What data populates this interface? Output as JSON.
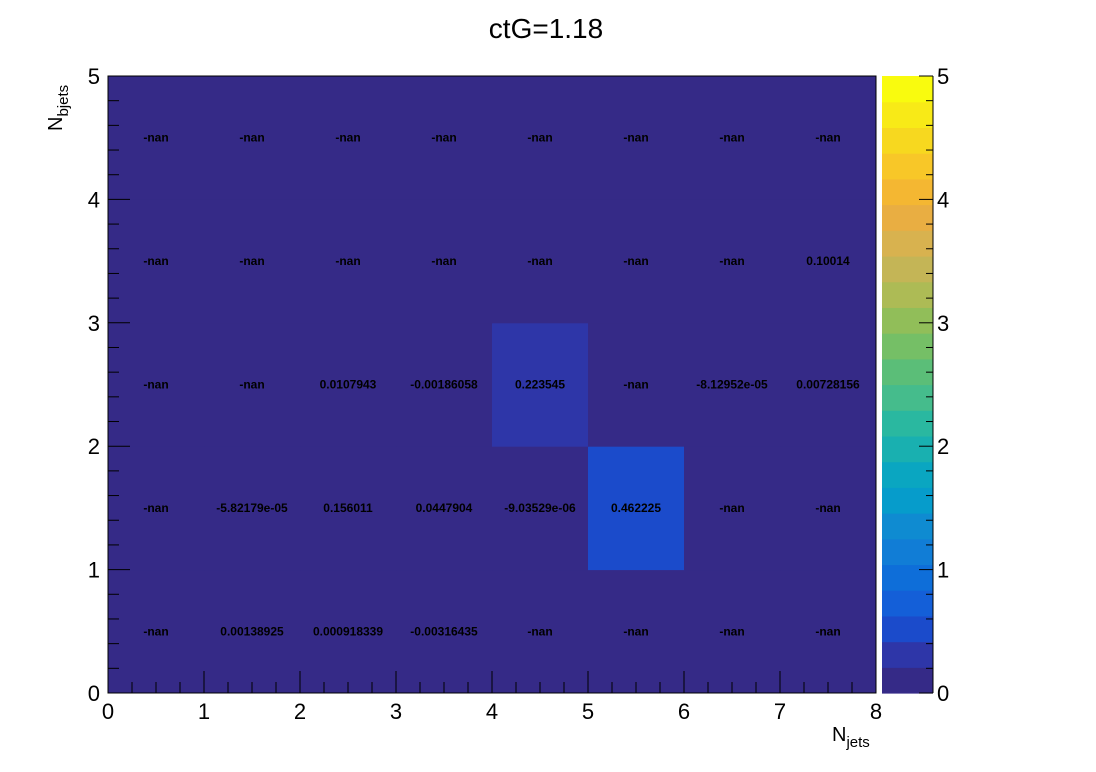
{
  "chart_data": {
    "type": "heatmap",
    "title": "ctG=1.18",
    "xlabel": {
      "main": "N",
      "sub": "jets"
    },
    "ylabel": {
      "main": "N",
      "sub": "bjets"
    },
    "xlim": [
      0,
      8
    ],
    "ylim": [
      0,
      5
    ],
    "x_ticks": [
      "0",
      "1",
      "2",
      "3",
      "4",
      "5",
      "6",
      "7",
      "8"
    ],
    "y_ticks": [
      "0",
      "1",
      "2",
      "3",
      "4",
      "5"
    ],
    "z_range": [
      0,
      5
    ],
    "z_ticks": [
      "0",
      "1",
      "2",
      "3",
      "4",
      "5"
    ],
    "palette": [
      "#352a87",
      "#2e36a8",
      "#1b4bcb",
      "#145fd8",
      "#0e6ed9",
      "#117dd6",
      "#0f8bd1",
      "#069ccb",
      "#0aa6c1",
      "#19b0b0",
      "#2ab8a0",
      "#45bc8c",
      "#5bbe78",
      "#75bf66",
      "#91be59",
      "#adbb55",
      "#c4b556",
      "#d8b24f",
      "#e9ae42",
      "#f4b732",
      "#f8c728",
      "#f7d81f",
      "#f8ea17",
      "#f9fb0e"
    ],
    "rows": [
      {
        "nbjets": 0,
        "labels": [
          "-nan",
          "0.00138925",
          "0.000918339",
          "-0.00316435",
          "-nan",
          "-nan",
          "-nan",
          "-nan"
        ],
        "values": [
          null,
          0.00138925,
          0.000918339,
          -0.00316435,
          null,
          null,
          null,
          null
        ]
      },
      {
        "nbjets": 1,
        "labels": [
          "-nan",
          "-5.82179e-05",
          "0.156011",
          "0.0447904",
          "-9.03529e-06",
          "0.462225",
          "-nan",
          "-nan"
        ],
        "values": [
          null,
          -5.82179e-05,
          0.156011,
          0.0447904,
          -9.03529e-06,
          0.462225,
          null,
          null
        ]
      },
      {
        "nbjets": 2,
        "labels": [
          "-nan",
          "-nan",
          "0.0107943",
          "-0.00186058",
          "0.223545",
          "-nan",
          "-8.12952e-05",
          "0.00728156"
        ],
        "values": [
          null,
          null,
          0.0107943,
          -0.00186058,
          0.223545,
          null,
          -8.12952e-05,
          0.00728156
        ]
      },
      {
        "nbjets": 3,
        "labels": [
          "-nan",
          "-nan",
          "-nan",
          "-nan",
          "-nan",
          "-nan",
          "-nan",
          "0.10014"
        ],
        "values": [
          null,
          null,
          null,
          null,
          null,
          null,
          null,
          0.10014
        ]
      },
      {
        "nbjets": 4,
        "labels": [
          "-nan",
          "-nan",
          "-nan",
          "-nan",
          "-nan",
          "-nan",
          "-nan",
          "-nan"
        ],
        "values": [
          null,
          null,
          null,
          null,
          null,
          null,
          null,
          null
        ]
      }
    ]
  }
}
